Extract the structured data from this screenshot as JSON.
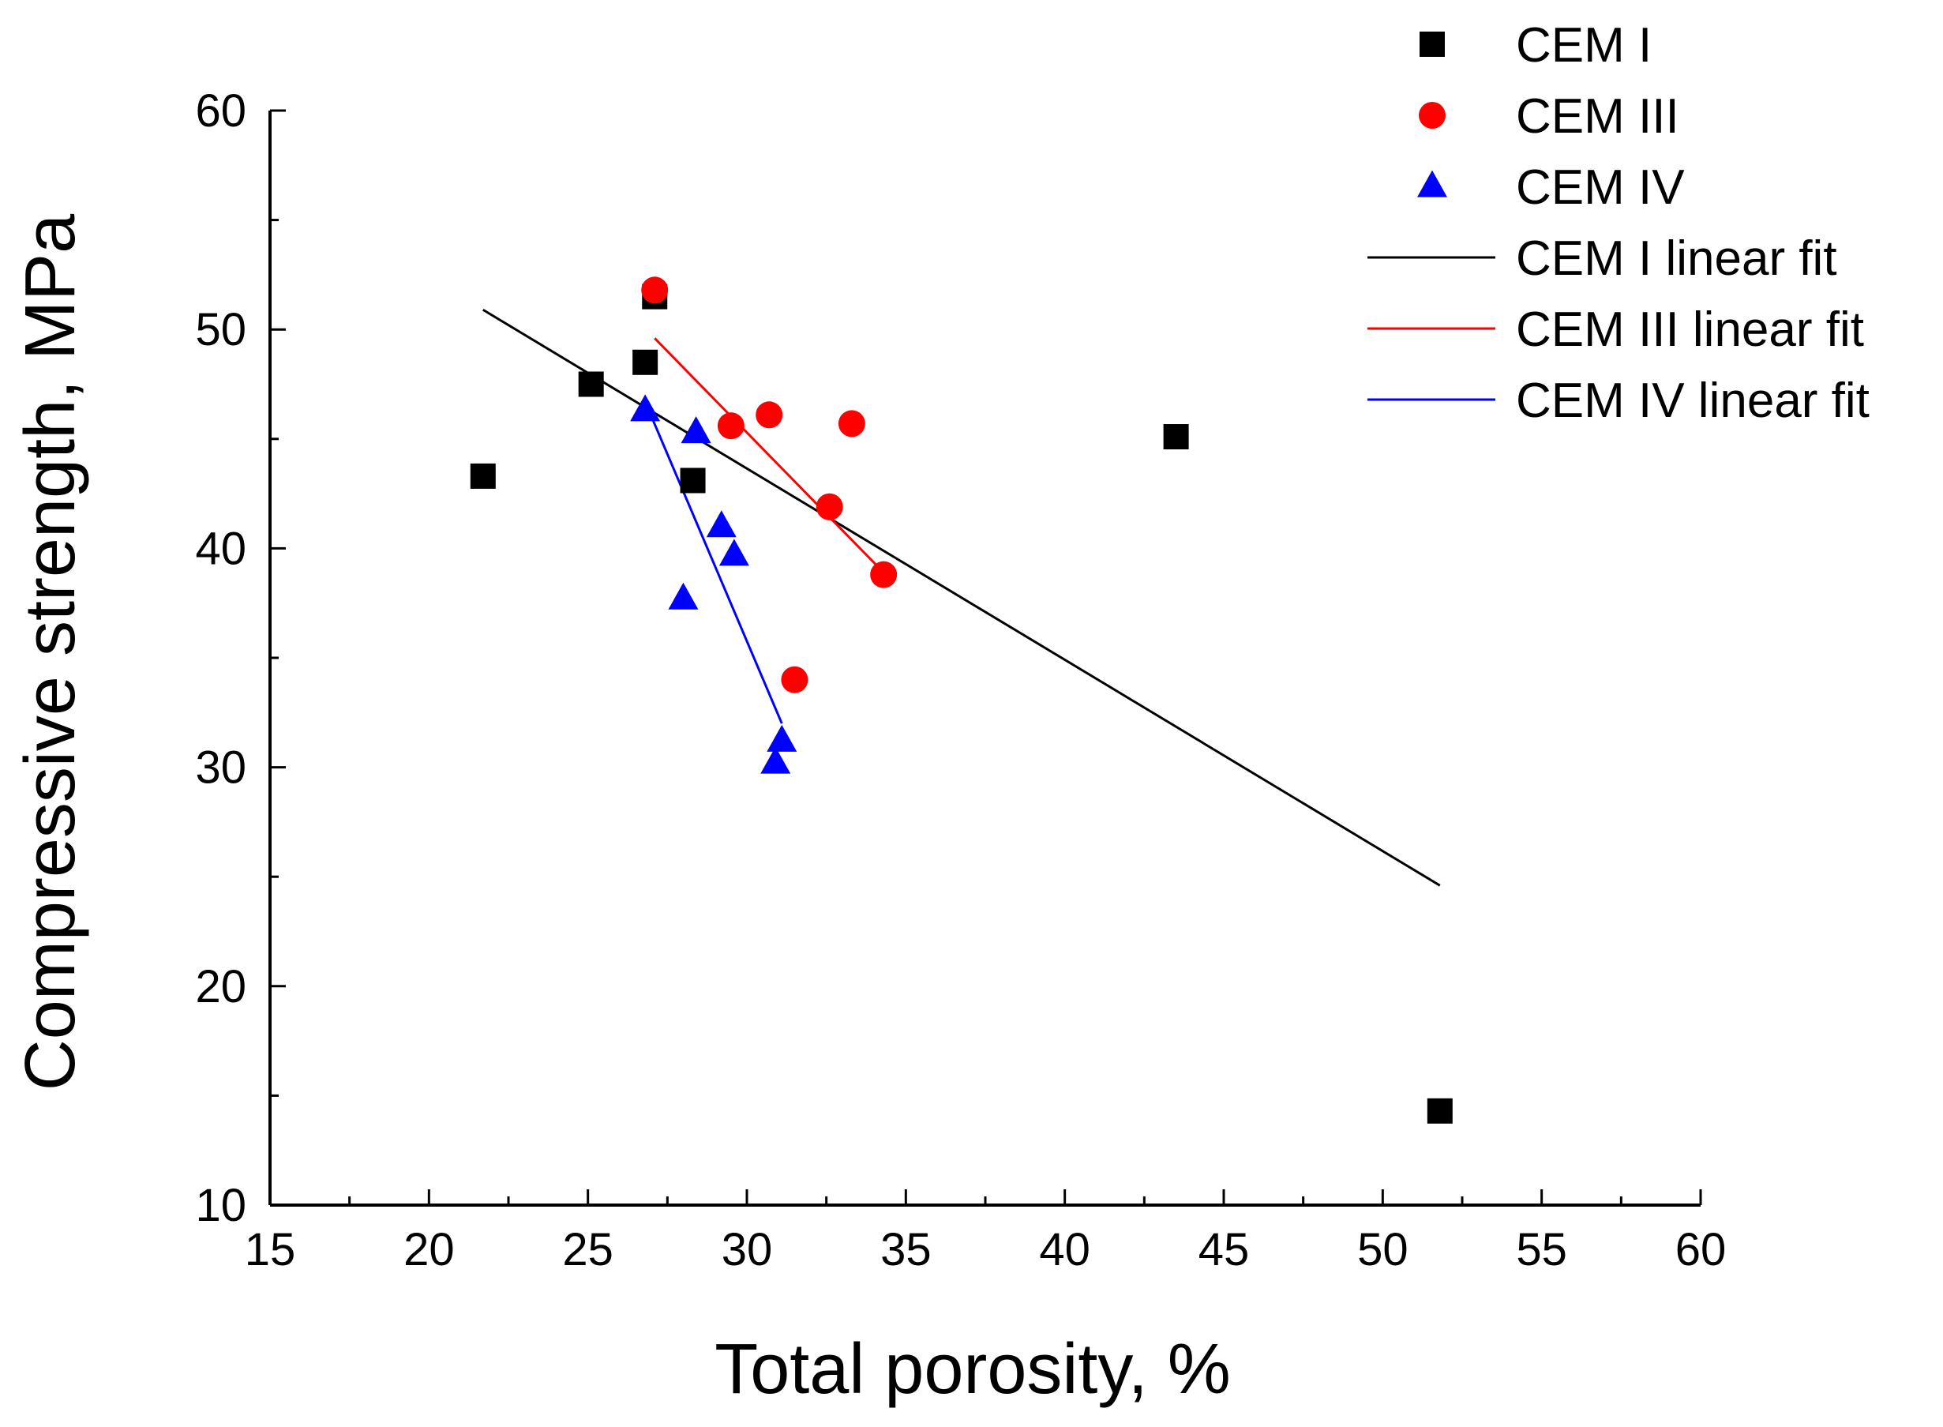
{
  "chart_data": {
    "type": "scatter",
    "xlabel": "Total porosity, %",
    "ylabel": "Compressive strength, MPa",
    "xlim": [
      15,
      60
    ],
    "ylim": [
      10,
      60
    ],
    "x_ticks": [
      15,
      20,
      25,
      30,
      35,
      40,
      45,
      50,
      55,
      60
    ],
    "y_ticks": [
      10,
      20,
      30,
      40,
      50,
      60
    ],
    "legend_position": "top-right, outside plot area",
    "grid": false,
    "series": [
      {
        "name": "CEM I",
        "marker": "square",
        "color": "#000000",
        "points": [
          [
            21.7,
            43.3
          ],
          [
            25.1,
            47.5
          ],
          [
            26.8,
            48.5
          ],
          [
            27.1,
            51.5
          ],
          [
            28.3,
            43.1
          ],
          [
            43.5,
            45.1
          ],
          [
            51.8,
            14.3
          ]
        ]
      },
      {
        "name": "CEM III",
        "marker": "circle",
        "color": "#ff0000",
        "points": [
          [
            27.1,
            51.8
          ],
          [
            29.5,
            45.6
          ],
          [
            30.7,
            46.1
          ],
          [
            31.5,
            34.0
          ],
          [
            32.6,
            41.9
          ],
          [
            33.3,
            45.7
          ],
          [
            34.3,
            38.8
          ]
        ]
      },
      {
        "name": "CEM IV",
        "marker": "triangle",
        "color": "#0000ff",
        "points": [
          [
            26.8,
            46.3
          ],
          [
            28.4,
            45.3
          ],
          [
            28.0,
            37.7
          ],
          [
            29.2,
            41.0
          ],
          [
            29.6,
            39.7
          ],
          [
            30.9,
            30.2
          ],
          [
            31.1,
            31.2
          ]
        ]
      }
    ],
    "fits": [
      {
        "name": "CEM I linear fit",
        "color": "#000000",
        "x": [
          21.7,
          51.8
        ],
        "y": [
          50.9,
          24.6
        ]
      },
      {
        "name": "CEM III linear fit",
        "color": "#ff0000",
        "x": [
          27.1,
          34.3
        ],
        "y": [
          49.6,
          38.9
        ]
      },
      {
        "name": "CEM IV linear fit",
        "color": "#0000ff",
        "x": [
          26.8,
          31.1
        ],
        "y": [
          46.7,
          32.0
        ]
      }
    ]
  }
}
